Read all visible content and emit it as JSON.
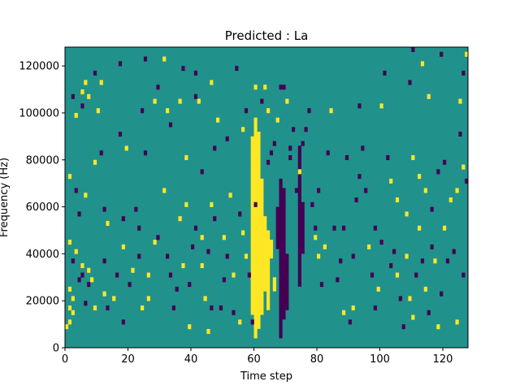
{
  "chart_data": {
    "type": "heatmap",
    "title": "Predicted : La",
    "xlabel": "Time step",
    "ylabel": "Frequency (Hz)",
    "xlim": [
      0,
      128
    ],
    "ylim": [
      0,
      128000
    ],
    "x_ticks": [
      0,
      20,
      40,
      60,
      80,
      100,
      120
    ],
    "x_tick_labels": [
      "0",
      "20",
      "40",
      "60",
      "80",
      "100",
      "120"
    ],
    "y_ticks": [
      0,
      20000,
      40000,
      60000,
      80000,
      100000,
      120000
    ],
    "y_tick_labels": [
      "0",
      "20000",
      "40000",
      "60000",
      "80000",
      "100000",
      "120000"
    ],
    "grid": false,
    "colormap": {
      "low": "#440154",
      "mid": "#21918c",
      "high": "#fde725"
    },
    "background_value": 0,
    "value_range": [
      -1,
      1
    ],
    "bin_height_hz": 2000,
    "cells": [
      {
        "t": 0,
        "f": 8000,
        "v": 1
      },
      {
        "t": 1,
        "f": 10000,
        "v": 1
      },
      {
        "t": 2,
        "f": 14000,
        "v": 1
      },
      {
        "t": 1,
        "f": 16000,
        "v": 1
      },
      {
        "t": 2,
        "f": 20000,
        "v": 1
      },
      {
        "t": 1,
        "f": 24000,
        "v": 1
      },
      {
        "t": 1,
        "f": 44000,
        "v": 1
      },
      {
        "t": 1,
        "f": 72000,
        "v": 1
      },
      {
        "t": 2,
        "f": 36000,
        "v": -1
      },
      {
        "t": 3,
        "f": 40000,
        "v": 1
      },
      {
        "t": 4,
        "f": 28000,
        "v": -1
      },
      {
        "t": 5,
        "f": 30000,
        "v": -1
      },
      {
        "t": 5,
        "f": 34000,
        "v": 1
      },
      {
        "t": 7,
        "f": 26000,
        "v": -1
      },
      {
        "t": 7,
        "f": 32000,
        "v": 1
      },
      {
        "t": 8,
        "f": 28000,
        "v": 1
      },
      {
        "t": 9,
        "f": 16000,
        "v": 1
      },
      {
        "t": 6,
        "f": 18000,
        "v": -1
      },
      {
        "t": 3,
        "f": 66000,
        "v": -1
      },
      {
        "t": 6,
        "f": 64000,
        "v": 1
      },
      {
        "t": 4,
        "f": 56000,
        "v": -1
      },
      {
        "t": 2,
        "f": 106000,
        "v": -1
      },
      {
        "t": 3,
        "f": 98000,
        "v": 1
      },
      {
        "t": 5,
        "f": 102000,
        "v": -1
      },
      {
        "t": 5,
        "f": 108000,
        "v": 1
      },
      {
        "t": 6,
        "f": 112000,
        "v": 1
      },
      {
        "t": 7,
        "f": 106000,
        "v": 1
      },
      {
        "t": 9,
        "f": 116000,
        "v": -1
      },
      {
        "t": 11,
        "f": 112000,
        "v": 1
      },
      {
        "t": 10,
        "f": 100000,
        "v": 1
      },
      {
        "t": 9,
        "f": 78000,
        "v": 1
      },
      {
        "t": 11,
        "f": 82000,
        "v": -1
      },
      {
        "t": 12,
        "f": 58000,
        "v": -1
      },
      {
        "t": 13,
        "f": 52000,
        "v": 1
      },
      {
        "t": 12,
        "f": 36000,
        "v": -1
      },
      {
        "t": 12,
        "f": 22000,
        "v": 1
      },
      {
        "t": 13,
        "f": 16000,
        "v": -1
      },
      {
        "t": 15,
        "f": 20000,
        "v": 1
      },
      {
        "t": 16,
        "f": 30000,
        "v": -1
      },
      {
        "t": 18,
        "f": 42000,
        "v": 1
      },
      {
        "t": 18,
        "f": 54000,
        "v": -1
      },
      {
        "t": 17,
        "f": 90000,
        "v": -1
      },
      {
        "t": 19,
        "f": 84000,
        "v": 1
      },
      {
        "t": 17,
        "f": 120000,
        "v": -1
      },
      {
        "t": 18,
        "f": 10000,
        "v": -1
      },
      {
        "t": 20,
        "f": 26000,
        "v": -1
      },
      {
        "t": 21,
        "f": 32000,
        "v": 1
      },
      {
        "t": 22,
        "f": 58000,
        "v": -1
      },
      {
        "t": 23,
        "f": 50000,
        "v": -1
      },
      {
        "t": 23,
        "f": 38000,
        "v": -1
      },
      {
        "t": 24,
        "f": 16000,
        "v": 1
      },
      {
        "t": 26,
        "f": 20000,
        "v": 1
      },
      {
        "t": 26,
        "f": 30000,
        "v": 1
      },
      {
        "t": 28,
        "f": 44000,
        "v": 1
      },
      {
        "t": 29,
        "f": 46000,
        "v": -1
      },
      {
        "t": 25,
        "f": 82000,
        "v": -1
      },
      {
        "t": 24,
        "f": 100000,
        "v": -1
      },
      {
        "t": 25,
        "f": 122000,
        "v": -1
      },
      {
        "t": 28,
        "f": 104000,
        "v": 1
      },
      {
        "t": 29,
        "f": 110000,
        "v": -1
      },
      {
        "t": 31,
        "f": 122000,
        "v": 1
      },
      {
        "t": 32,
        "f": 100000,
        "v": 1
      },
      {
        "t": 33,
        "f": 94000,
        "v": -1
      },
      {
        "t": 31,
        "f": 66000,
        "v": 1
      },
      {
        "t": 32,
        "f": 38000,
        "v": -1
      },
      {
        "t": 33,
        "f": 30000,
        "v": -1
      },
      {
        "t": 34,
        "f": 16000,
        "v": -1
      },
      {
        "t": 35,
        "f": 24000,
        "v": -1
      },
      {
        "t": 36,
        "f": 54000,
        "v": 1
      },
      {
        "t": 37,
        "f": 34000,
        "v": 1
      },
      {
        "t": 38,
        "f": 60000,
        "v": 1
      },
      {
        "t": 36,
        "f": 104000,
        "v": 1
      },
      {
        "t": 37,
        "f": 118000,
        "v": -1
      },
      {
        "t": 38,
        "f": 80000,
        "v": 1
      },
      {
        "t": 39,
        "f": 26000,
        "v": -1
      },
      {
        "t": 39,
        "f": 8000,
        "v": 1
      },
      {
        "t": 40,
        "f": 42000,
        "v": -1
      },
      {
        "t": 41,
        "f": 50000,
        "v": -1
      },
      {
        "t": 41,
        "f": 106000,
        "v": -1
      },
      {
        "t": 41,
        "f": 116000,
        "v": -1
      },
      {
        "t": 42,
        "f": 104000,
        "v": 1
      },
      {
        "t": 43,
        "f": 74000,
        "v": -1
      },
      {
        "t": 43,
        "f": 34000,
        "v": 1
      },
      {
        "t": 43,
        "f": 46000,
        "v": 1
      },
      {
        "t": 44,
        "f": 20000,
        "v": 1
      },
      {
        "t": 45,
        "f": 6000,
        "v": 1
      },
      {
        "t": 45,
        "f": 40000,
        "v": -1
      },
      {
        "t": 46,
        "f": 16000,
        "v": -1
      },
      {
        "t": 46,
        "f": 60000,
        "v": 1
      },
      {
        "t": 47,
        "f": 54000,
        "v": -1
      },
      {
        "t": 47,
        "f": 84000,
        "v": -1
      },
      {
        "t": 46,
        "f": 112000,
        "v": 1
      },
      {
        "t": 48,
        "f": 96000,
        "v": 1
      },
      {
        "t": 49,
        "f": 16000,
        "v": -1
      },
      {
        "t": 50,
        "f": 28000,
        "v": -1
      },
      {
        "t": 50,
        "f": 46000,
        "v": 1
      },
      {
        "t": 51,
        "f": 38000,
        "v": -1
      },
      {
        "t": 51,
        "f": 88000,
        "v": -1
      },
      {
        "t": 52,
        "f": 64000,
        "v": 1
      },
      {
        "t": 53,
        "f": 14000,
        "v": -1
      },
      {
        "t": 53,
        "f": 30000,
        "v": 1
      },
      {
        "t": 54,
        "f": 118000,
        "v": -1
      },
      {
        "t": 55,
        "f": 10000,
        "v": 1
      },
      {
        "t": 55,
        "f": 56000,
        "v": -1
      },
      {
        "t": 56,
        "f": 48000,
        "v": 1
      },
      {
        "t": 56,
        "f": 92000,
        "v": 1
      },
      {
        "t": 57,
        "f": 38000,
        "v": 1
      },
      {
        "t": 58,
        "f": 30000,
        "v": -1
      },
      {
        "t": 57,
        "f": 100000,
        "v": -1
      },
      {
        "t": 60,
        "f": 60000,
        "v": -1
      },
      {
        "t": 59,
        "f": 10000,
        "v": -1
      },
      {
        "t": 60,
        "f": 110000,
        "v": 1
      },
      {
        "t": 62,
        "f": 104000,
        "v": -1
      },
      {
        "t": 63,
        "f": 110000,
        "v": 1
      },
      {
        "t": 64,
        "f": 100000,
        "v": 1
      },
      {
        "t": 64,
        "f": 78000,
        "v": -1
      },
      {
        "t": 65,
        "f": 82000,
        "v": -1
      },
      {
        "t": 66,
        "f": 86000,
        "v": -1
      },
      {
        "t": 67,
        "f": 96000,
        "v": 1
      },
      {
        "t": 68,
        "f": 110000,
        "v": -1
      },
      {
        "t": 69,
        "f": 110000,
        "v": -1
      },
      {
        "t": 70,
        "f": 104000,
        "v": 1
      },
      {
        "t": 71,
        "f": 84000,
        "v": -1
      },
      {
        "t": 71,
        "f": 80000,
        "v": -1
      },
      {
        "t": 72,
        "f": 92000,
        "v": -1
      },
      {
        "t": 73,
        "f": 66000,
        "v": -1
      },
      {
        "t": 74,
        "f": 74000,
        "v": 1
      },
      {
        "t": 75,
        "f": 86000,
        "v": -1
      },
      {
        "t": 76,
        "f": 92000,
        "v": -1
      },
      {
        "t": 77,
        "f": 100000,
        "v": -1
      },
      {
        "t": 78,
        "f": 60000,
        "v": -1
      },
      {
        "t": 79,
        "f": 50000,
        "v": -1
      },
      {
        "t": 80,
        "f": 66000,
        "v": -1
      },
      {
        "t": 79,
        "f": 46000,
        "v": 1
      },
      {
        "t": 80,
        "f": 38000,
        "v": 1
      },
      {
        "t": 81,
        "f": 26000,
        "v": -1
      },
      {
        "t": 82,
        "f": 42000,
        "v": 1
      },
      {
        "t": 83,
        "f": 82000,
        "v": -1
      },
      {
        "t": 84,
        "f": 100000,
        "v": 1
      },
      {
        "t": 85,
        "f": 50000,
        "v": -1
      },
      {
        "t": 86,
        "f": 28000,
        "v": -1
      },
      {
        "t": 87,
        "f": 36000,
        "v": -1
      },
      {
        "t": 88,
        "f": 14000,
        "v": 1
      },
      {
        "t": 89,
        "f": 80000,
        "v": -1
      },
      {
        "t": 88,
        "f": 50000,
        "v": -1
      },
      {
        "t": 90,
        "f": 10000,
        "v": -1
      },
      {
        "t": 91,
        "f": 16000,
        "v": 1
      },
      {
        "t": 92,
        "f": 62000,
        "v": -1
      },
      {
        "t": 93,
        "f": 72000,
        "v": -1
      },
      {
        "t": 91,
        "f": 38000,
        "v": -1
      },
      {
        "t": 93,
        "f": 102000,
        "v": -1
      },
      {
        "t": 94,
        "f": 84000,
        "v": -1
      },
      {
        "t": 95,
        "f": 66000,
        "v": -1
      },
      {
        "t": 96,
        "f": 42000,
        "v": 1
      },
      {
        "t": 97,
        "f": 30000,
        "v": -1
      },
      {
        "t": 98,
        "f": 16000,
        "v": -1
      },
      {
        "t": 99,
        "f": 24000,
        "v": 1
      },
      {
        "t": 98,
        "f": 50000,
        "v": -1
      },
      {
        "t": 100,
        "f": 44000,
        "v": -1
      },
      {
        "t": 100,
        "f": 102000,
        "v": 1
      },
      {
        "t": 101,
        "f": 116000,
        "v": -1
      },
      {
        "t": 102,
        "f": 80000,
        "v": -1
      },
      {
        "t": 103,
        "f": 34000,
        "v": -1
      },
      {
        "t": 104,
        "f": 40000,
        "v": -1
      },
      {
        "t": 105,
        "f": 30000,
        "v": 1
      },
      {
        "t": 106,
        "f": 20000,
        "v": -1
      },
      {
        "t": 107,
        "f": 8000,
        "v": -1
      },
      {
        "t": 108,
        "f": 38000,
        "v": 1
      },
      {
        "t": 109,
        "f": 20000,
        "v": 1
      },
      {
        "t": 110,
        "f": 12000,
        "v": 1
      },
      {
        "t": 111,
        "f": 30000,
        "v": -1
      },
      {
        "t": 112,
        "f": 50000,
        "v": 1
      },
      {
        "t": 113,
        "f": 36000,
        "v": -1
      },
      {
        "t": 114,
        "f": 24000,
        "v": 1
      },
      {
        "t": 115,
        "f": 14000,
        "v": -1
      },
      {
        "t": 116,
        "f": 42000,
        "v": -1
      },
      {
        "t": 117,
        "f": 36000,
        "v": 1
      },
      {
        "t": 118,
        "f": 8000,
        "v": 1
      },
      {
        "t": 119,
        "f": 22000,
        "v": -1
      },
      {
        "t": 120,
        "f": 50000,
        "v": 1
      },
      {
        "t": 121,
        "f": 36000,
        "v": -1
      },
      {
        "t": 122,
        "f": 62000,
        "v": 1
      },
      {
        "t": 123,
        "f": 40000,
        "v": -1
      },
      {
        "t": 124,
        "f": 66000,
        "v": 1
      },
      {
        "t": 125,
        "f": 90000,
        "v": -1
      },
      {
        "t": 126,
        "f": 76000,
        "v": 1
      },
      {
        "t": 127,
        "f": 70000,
        "v": -1
      },
      {
        "t": 124,
        "f": 10000,
        "v": 1
      },
      {
        "t": 126,
        "f": 30000,
        "v": -1
      },
      {
        "t": 103,
        "f": 70000,
        "v": 1
      },
      {
        "t": 105,
        "f": 62000,
        "v": 1
      },
      {
        "t": 108,
        "f": 56000,
        "v": 1
      },
      {
        "t": 110,
        "f": 80000,
        "v": 1
      },
      {
        "t": 112,
        "f": 72000,
        "v": 1
      },
      {
        "t": 114,
        "f": 66000,
        "v": 1
      },
      {
        "t": 116,
        "f": 58000,
        "v": -1
      },
      {
        "t": 118,
        "f": 74000,
        "v": -1
      },
      {
        "t": 120,
        "f": 78000,
        "v": -1
      },
      {
        "t": 109,
        "f": 112000,
        "v": -1
      },
      {
        "t": 110,
        "f": 126000,
        "v": -1
      },
      {
        "t": 113,
        "f": 120000,
        "v": 1
      },
      {
        "t": 115,
        "f": 106000,
        "v": 1
      },
      {
        "t": 119,
        "f": 124000,
        "v": -1
      },
      {
        "t": 125,
        "f": 104000,
        "v": 1
      },
      {
        "t": 127,
        "f": 124000,
        "v": 1
      },
      {
        "t": 126,
        "f": 116000,
        "v": -1
      }
    ],
    "band_columns": [
      {
        "t": 59,
        "from": 14000,
        "to": 90000,
        "v": 1
      },
      {
        "t": 60,
        "from": 4000,
        "to": 98000,
        "v": 1
      },
      {
        "t": 61,
        "from": 8000,
        "to": 92000,
        "v": 1
      },
      {
        "t": 62,
        "from": 14000,
        "to": 72000,
        "v": 1
      },
      {
        "t": 63,
        "from": 24000,
        "to": 56000,
        "v": 1
      },
      {
        "t": 64,
        "from": 16000,
        "to": 50000,
        "v": 1
      },
      {
        "t": 68,
        "from": 4000,
        "to": 72000,
        "v": -1
      },
      {
        "t": 69,
        "from": 12000,
        "to": 68000,
        "v": -1
      },
      {
        "t": 70,
        "from": 16000,
        "to": 40000,
        "v": -1
      },
      {
        "t": 74,
        "from": 26000,
        "to": 86000,
        "v": -1
      },
      {
        "t": 75,
        "from": 40000,
        "to": 62000,
        "v": -1
      },
      {
        "t": 67,
        "from": 42000,
        "to": 60000,
        "v": -1
      },
      {
        "t": 66,
        "from": 24000,
        "to": 30000,
        "v": 1
      },
      {
        "t": 65,
        "from": 38000,
        "to": 46000,
        "v": 1
      }
    ]
  }
}
